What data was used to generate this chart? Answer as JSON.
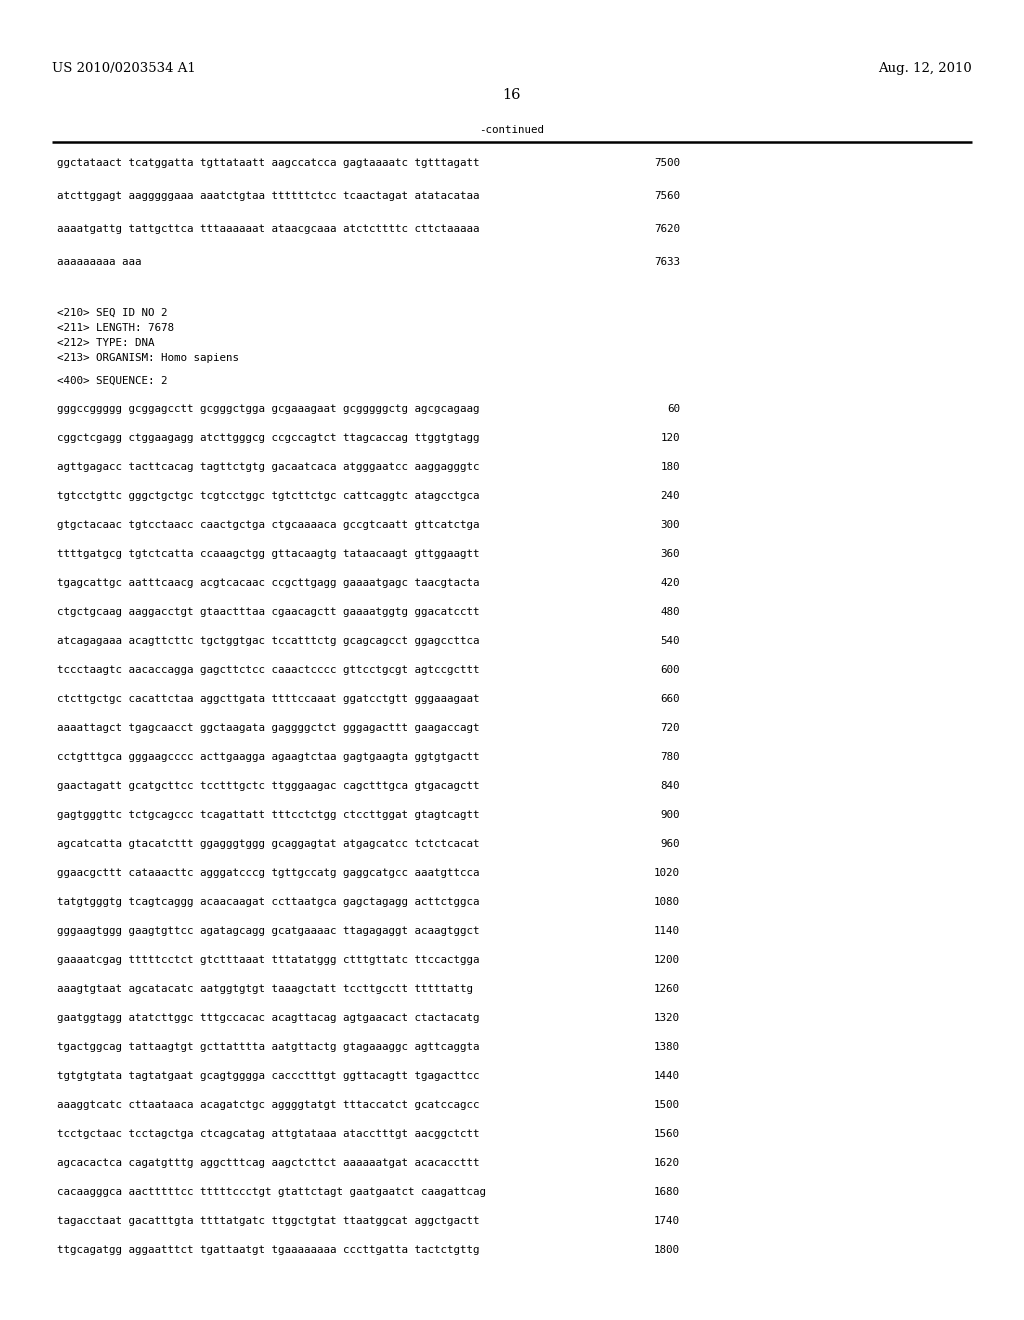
{
  "header_left": "US 2010/0203534 A1",
  "header_right": "Aug. 12, 2010",
  "page_number": "16",
  "continued_label": "-continued",
  "background_color": "#ffffff",
  "text_color": "#000000",
  "header_fontsize": 9.5,
  "page_fontsize": 10.5,
  "mono_fontsize": 7.8,
  "continued_lines": [
    [
      "ggctataact tcatggatta tgttataatt aagccatcca gagtaaaatc tgtttagatt",
      "7500"
    ],
    [
      "atcttggagt aagggggaaa aaatctgtaa ttttttctcc tcaactagat atatacataa",
      "7560"
    ],
    [
      "aaaatgattg tattgcttca tttaaaaaat ataacgcaaa atctcttttc cttctaaaaa",
      "7620"
    ],
    [
      "aaaaaaaaa aaa",
      "7633"
    ]
  ],
  "seq_info": [
    "<210> SEQ ID NO 2",
    "<211> LENGTH: 7678",
    "<212> TYPE: DNA",
    "<213> ORGANISM: Homo sapiens"
  ],
  "seq_label": "<400> SEQUENCE: 2",
  "sequence_lines": [
    [
      "gggccggggg gcggagcctt gcgggctgga gcgaaagaat gcgggggctg agcgcagaag",
      "60"
    ],
    [
      "cggctcgagg ctggaagagg atcttgggcg ccgccagtct ttagcaccag ttggtgtagg",
      "120"
    ],
    [
      "agttgagacc tacttcacag tagttctgtg gacaatcaca atgggaatcc aaggagggtc",
      "180"
    ],
    [
      "tgtcctgttc gggctgctgc tcgtcctggc tgtcttctgc cattcaggtc atagcctgca",
      "240"
    ],
    [
      "gtgctacaac tgtcctaacc caactgctga ctgcaaaaca gccgtcaatt gttcatctga",
      "300"
    ],
    [
      "ttttgatgcg tgtctcatta ccaaagctgg gttacaagtg tataacaagt gttggaagtt",
      "360"
    ],
    [
      "tgagcattgc aatttcaacg acgtcacaac ccgcttgagg gaaaatgagc taacgtacta",
      "420"
    ],
    [
      "ctgctgcaag aaggacctgt gtaactttaa cgaacagctt gaaaatggtg ggacatcctt",
      "480"
    ],
    [
      "atcagagaaa acagttcttc tgctggtgac tccatttctg gcagcagcct ggagccttca",
      "540"
    ],
    [
      "tccctaagtc aacaccagga gagcttctcc caaactcccc gttcctgcgt agtccgcttt",
      "600"
    ],
    [
      "ctcttgctgc cacattctaa aggcttgata ttttccaaat ggatcctgtt gggaaagaat",
      "660"
    ],
    [
      "aaaattagct tgagcaacct ggctaagata gaggggctct gggagacttt gaagaccagt",
      "720"
    ],
    [
      "cctgtttgca gggaagcccc acttgaagga agaagtctaa gagtgaagta ggtgtgactt",
      "780"
    ],
    [
      "gaactagatt gcatgcttcc tcctttgctc ttgggaagac cagctttgca gtgacagctt",
      "840"
    ],
    [
      "gagtgggttc tctgcagccc tcagattatt tttcctctgg ctccttggat gtagtcagtt",
      "900"
    ],
    [
      "agcatcatta gtacatcttt ggagggtggg gcaggagtat atgagcatcc tctctcacat",
      "960"
    ],
    [
      "ggaacgcttt cataaacttc agggatcccg tgttgccatg gaggcatgcc aaatgttcca",
      "1020"
    ],
    [
      "tatgtgggtg tcagtcaggg acaacaagat ccttaatgca gagctagagg acttctggca",
      "1080"
    ],
    [
      "gggaagtggg gaagtgttcc agatagcagg gcatgaaaac ttagagaggt acaagtggct",
      "1140"
    ],
    [
      "gaaaatcgag tttttcctct gtctttaaat tttatatggg ctttgttatc ttccactgga",
      "1200"
    ],
    [
      "aaagtgtaat agcatacatc aatggtgtgt taaagctatt tccttgcctt tttttattg",
      "1260"
    ],
    [
      "gaatggtagg atatcttggc tttgccacac acagttacag agtgaacact ctactacatg",
      "1320"
    ],
    [
      "tgactggcag tattaagtgt gcttatttta aatgttactg gtagaaaggc agttcaggta",
      "1380"
    ],
    [
      "tgtgtgtata tagtatgaat gcagtgggga caccctttgt ggttacagtt tgagacttcc",
      "1440"
    ],
    [
      "aaaggtcatc cttaataaca acagatctgc aggggtatgt tttaccatct gcatccagcc",
      "1500"
    ],
    [
      "tcctgctaac tcctagctga ctcagcatag attgtataaa atacctttgt aacggctctt",
      "1560"
    ],
    [
      "agcacactca cagatgtttg aggctttcag aagctcttct aaaaaatgat acacaccttt",
      "1620"
    ],
    [
      "cacaagggca aactttttcc tttttccctgt gtattctagt gaatgaatct caagattcag",
      "1680"
    ],
    [
      "tagacctaat gacatttgta ttttatgatc ttggctgtat ttaatggcat aggctgactt",
      "1740"
    ],
    [
      "ttgcagatgg aggaatttct tgattaatgt tgaaaaaaaa cccttgatta tactctgttg",
      "1800"
    ]
  ]
}
